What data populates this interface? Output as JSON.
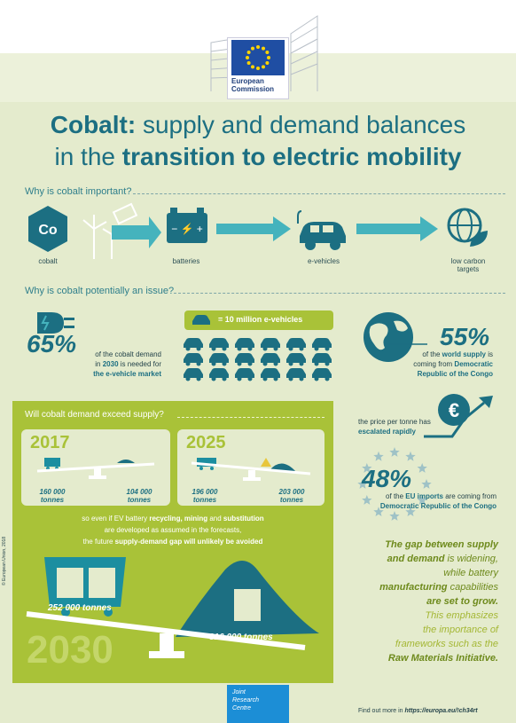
{
  "header": {
    "org_line1": "European",
    "org_line2": "Commission"
  },
  "title": {
    "line1_bold": "Cobalt:",
    "line1_rest": " supply and demand balances",
    "line2_start": "in the ",
    "line2_bold": "transition to electric mobility"
  },
  "why_important": {
    "question": "Why is cobalt important?",
    "co_symbol": "Co",
    "items": [
      "cobalt",
      "batteries",
      "e-vehicles",
      "low carbon targets"
    ]
  },
  "why_issue": {
    "question": "Why is cobalt potentially an issue?",
    "pct_demand": "65%",
    "demand_text_1": "of the cobalt demand",
    "demand_text_2a": "in ",
    "demand_text_2b": "2030",
    "demand_text_2c": " is needed for",
    "demand_text_3": "the e-vehicle market",
    "legend": "= 10 million e-vehicles",
    "car_rows": 3,
    "car_cols": 6,
    "pct_supply": "55%",
    "supply_text_1a": "of the ",
    "supply_text_1b": "world supply",
    "supply_text_1c": " is",
    "supply_text_2a": "coming from ",
    "supply_text_2b": "Democratic",
    "supply_text_3": "Republic of the Congo",
    "price_text_1": "the price per tonne has",
    "price_text_2": "escalated rapidly",
    "euro": "€",
    "pct_eu": "48%",
    "eu_text_1a": "of the ",
    "eu_text_1b": "EU imports",
    "eu_text_1c": " are coming from",
    "eu_text_2": "Democratic Republic of the Congo"
  },
  "exceed": {
    "question": "Will cobalt demand exceed supply?",
    "y2017": {
      "year": "2017",
      "supply": "160 000",
      "demand": "104 000",
      "unit": "tonnes"
    },
    "y2025": {
      "year": "2025",
      "supply": "196 000",
      "demand": "203 000",
      "unit": "tonnes"
    },
    "text_1a": "so even if EV battery ",
    "text_1b": "recycling, mining",
    "text_1c": " and ",
    "text_1d": "substitution",
    "text_2": "are developed as assumed in the forecasts,",
    "text_3a": "the future ",
    "text_3b": "supply-demand gap will unlikely be avoided",
    "y2030": {
      "year": "2030",
      "supply": "252 000 tonnes",
      "demand": "316 000 tonnes"
    },
    "copyright": "© European Union, 2018"
  },
  "gap": {
    "l1": "The gap between supply",
    "l2a": "and demand",
    "l2b": " is widening,",
    "l3": "while battery",
    "l4a": "manufacturing",
    "l4b": " capabilities",
    "l5": "are set to grow.",
    "l6": "This emphasizes",
    "l7": "the importance of",
    "l8": "frameworks such as the",
    "l9": "Raw Materials Initiative."
  },
  "footer": {
    "jrc_1": "Joint",
    "jrc_2": "Research",
    "jrc_3": "Centre",
    "find_more": "Find out more in ",
    "url": "https://europa.eu/!ch34rt"
  },
  "colors": {
    "teal": "#1c6f82",
    "lime": "#a9c238",
    "bg": "#e4ebcd",
    "blue": "#1c8ed6"
  }
}
